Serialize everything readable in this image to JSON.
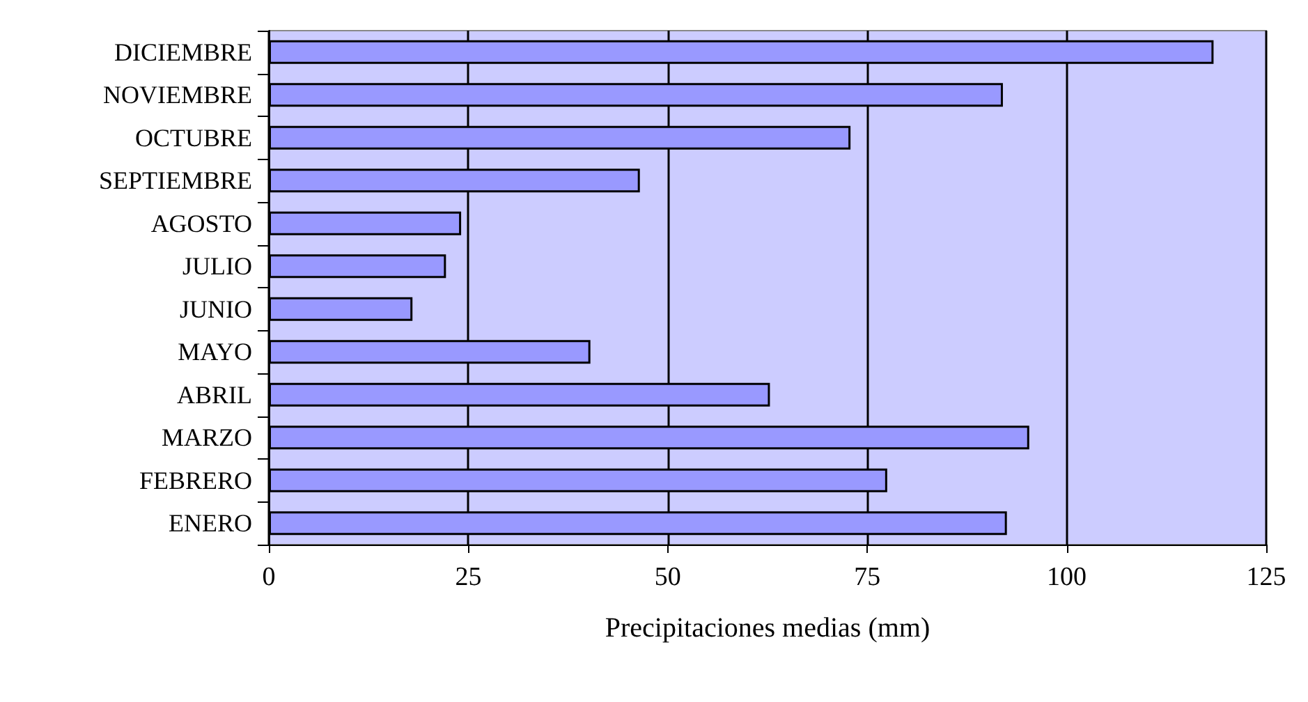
{
  "chart_data": {
    "type": "bar",
    "orientation": "horizontal",
    "xlabel": "Precipitaciones medias (mm)",
    "categories": [
      "DICIEMBRE",
      "NOVIEMBRE",
      "OCTUBRE",
      "SEPTIEMBRE",
      "AGOSTO",
      "JULIO",
      "JUNIO",
      "MAYO",
      "ABRIL",
      "MARZO",
      "FEBRERO",
      "ENERO"
    ],
    "values": [
      118.4,
      92,
      72.9,
      46.5,
      24.1,
      22.2,
      18,
      40.3,
      62.8,
      95.3,
      77.5,
      92.5
    ],
    "color": "#9999ff",
    "xlim": [
      0,
      125
    ],
    "xticks": [
      0,
      25,
      50,
      75,
      100,
      125
    ],
    "grid": "x"
  }
}
